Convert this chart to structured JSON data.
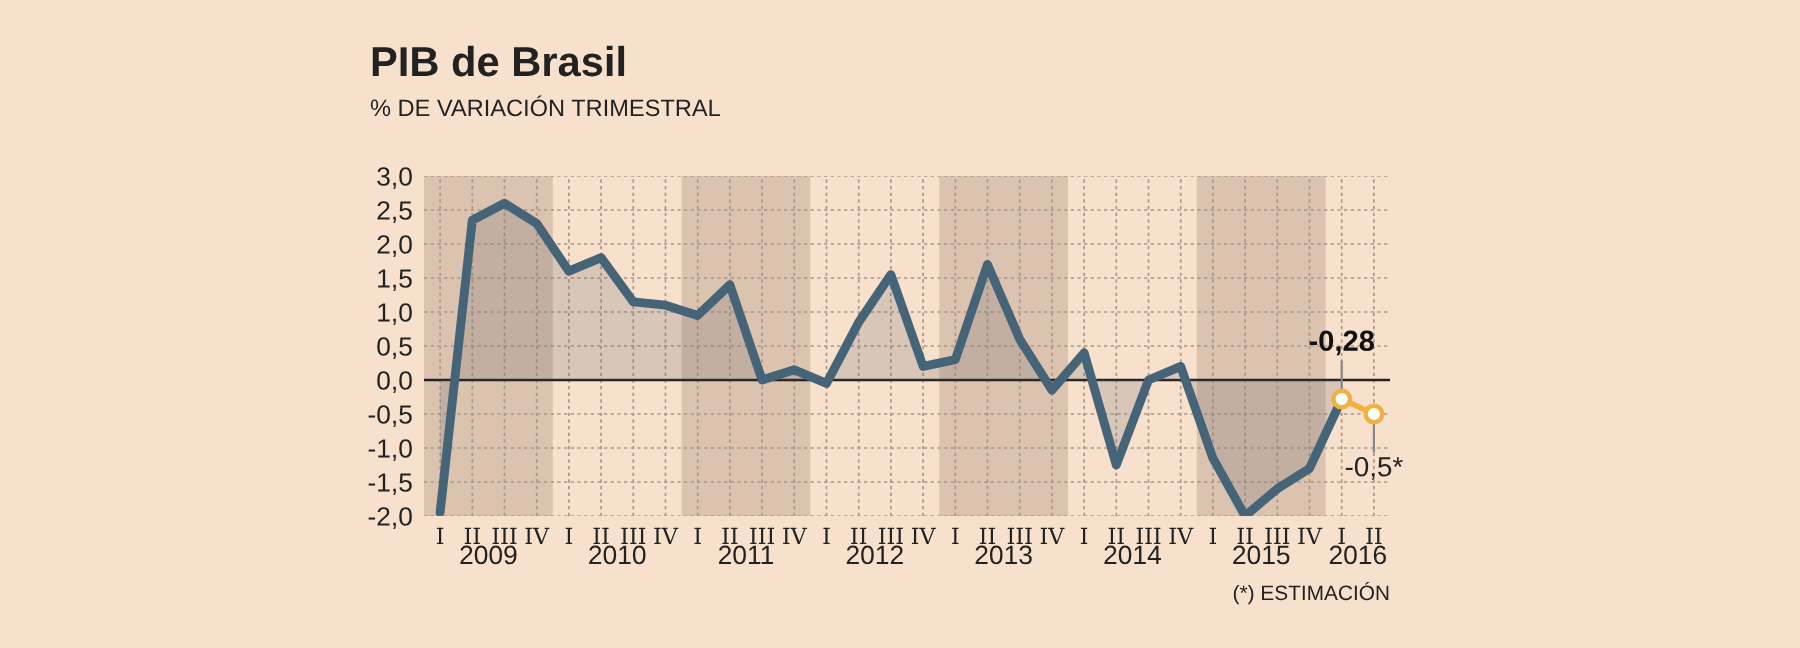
{
  "chart_data": {
    "type": "line",
    "title": "PIB de Brasil",
    "subtitle": "% DE VARIACIÓN TRIMESTRAL",
    "categories": [
      "I",
      "II",
      "III",
      "IV",
      "I",
      "II",
      "III",
      "IV",
      "I",
      "II",
      "III",
      "IV",
      "I",
      "II",
      "III",
      "IV",
      "I",
      "II",
      "III",
      "IV",
      "I",
      "II",
      "III",
      "IV",
      "I",
      "II",
      "III",
      "IV",
      "I",
      "II"
    ],
    "series": [
      {
        "type": "area",
        "color": "#456478",
        "values": [
          -1.95,
          2.35,
          2.6,
          2.3,
          1.6,
          1.8,
          1.15,
          1.1,
          0.95,
          1.4,
          0.0,
          0.15,
          -0.05,
          0.85,
          1.55,
          0.2,
          0.3,
          1.7,
          0.6,
          -0.15,
          0.4,
          -1.25,
          0.0,
          0.2,
          -1.15,
          -2.0,
          -1.6,
          -1.3,
          -0.28,
          null
        ],
        "value_labels": [
          null,
          null,
          null,
          null,
          null,
          null,
          null,
          null,
          null,
          null,
          null,
          null,
          null,
          null,
          null,
          null,
          null,
          null,
          null,
          null,
          null,
          null,
          null,
          null,
          null,
          null,
          null,
          null,
          "-0,28",
          null
        ]
      },
      {
        "color": "#efb13f",
        "marker": "circle",
        "line_style": "solid",
        "values": [
          null,
          null,
          null,
          null,
          null,
          null,
          null,
          null,
          null,
          null,
          null,
          null,
          null,
          null,
          null,
          null,
          null,
          null,
          null,
          null,
          null,
          null,
          null,
          null,
          null,
          null,
          null,
          null,
          -0.28,
          -0.5
        ],
        "value_labels": [
          null,
          null,
          null,
          null,
          null,
          null,
          null,
          null,
          null,
          null,
          null,
          null,
          null,
          null,
          null,
          null,
          null,
          null,
          null,
          null,
          null,
          null,
          null,
          null,
          null,
          null,
          null,
          null,
          null,
          "-0,5*"
        ]
      }
    ],
    "ylim": [
      -2.0,
      3.0
    ],
    "yticks": [
      {
        "value": -2.0,
        "label": "-2,0"
      },
      {
        "value": -1.5,
        "label": "-1,5"
      },
      {
        "value": -1.0,
        "label": "-1,0"
      },
      {
        "value": -0.5,
        "label": "-0,5"
      },
      {
        "value": 0.0,
        "label": "0,0"
      },
      {
        "value": 0.5,
        "label": "0,5"
      },
      {
        "value": 1.0,
        "label": "1,0"
      },
      {
        "value": 1.5,
        "label": "1,5"
      },
      {
        "value": 2.0,
        "label": "2,0"
      },
      {
        "value": 2.5,
        "label": "2,5"
      },
      {
        "value": 3.0,
        "label": "3,0"
      }
    ],
    "ref_lines": [
      {
        "axis": "y",
        "value": 0.0,
        "color": "#222222"
      }
    ],
    "annotations": [
      "2009",
      "2010",
      "2011",
      "2012",
      "2013",
      "2014",
      "2015",
      "2016",
      "(*) ESTIMACIÓN"
    ],
    "grid": true,
    "legend": false
  }
}
